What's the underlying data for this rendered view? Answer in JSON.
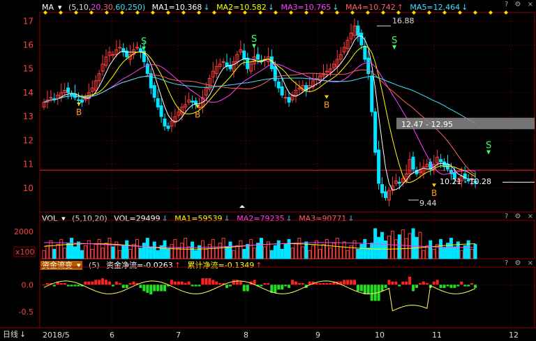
{
  "ma_header": {
    "indicator": "MA",
    "params_prefix": "(5,10,",
    "params_20": "20",
    "params_30": ",30,",
    "params_rest": "60,250)",
    "ma1": "MA1=10.368",
    "ma2": "MA2=10.582",
    "ma3": "MA3=10.765",
    "ma4": "MA4=10.742",
    "ma5": "MA5=12.464"
  },
  "vol_header": {
    "indicator": "VOL",
    "params": "(5,10,20)",
    "vol": "VOL=29499",
    "ma1": "MA1=59539",
    "ma2": "MA2=79235",
    "ma3": "MA3=90771"
  },
  "fund_header": {
    "button": "资金流变",
    "params": "(5)",
    "net": "资金净流=-0.0263",
    "cum": "累计净流=-0.1349"
  },
  "icons": {
    "question": "?",
    "settings": "⚙",
    "close": "×"
  },
  "bottom": {
    "period_label": "日线",
    "down_arrow": "↓"
  },
  "colors": {
    "up": "#ff3c3c",
    "down": "#00e5ff",
    "ma1": "#ffffff",
    "ma2": "#ffff00",
    "ma3": "#ff40ff",
    "ma4": "#ff6060",
    "ma5": "#40e0ff",
    "grid": "#8b0000",
    "axis_text": "#ff4040"
  },
  "chart_data": [
    {
      "type": "candlestick",
      "title": "",
      "y_ticks": [
        10,
        11,
        12,
        13,
        14,
        15,
        16,
        17
      ],
      "ylim": [
        9.0,
        17.3
      ],
      "x_tick_labels": [
        "2018/5",
        "6",
        "7",
        "8",
        "9",
        "10",
        "11",
        "12"
      ],
      "annotations": {
        "high_label": "16.88",
        "low_label": "9.44",
        "zone_upper": "12.47 - 12.95",
        "zone_lower": "10.21 - 10.28",
        "buy_marker": "B",
        "sell_marker": "S"
      },
      "close_series": [
        13.6,
        13.7,
        13.8,
        13.7,
        13.9,
        14.0,
        14.1,
        14.0,
        13.9,
        13.8,
        13.7,
        13.6,
        13.8,
        14.0,
        14.2,
        14.5,
        14.8,
        15.2,
        15.5,
        15.7,
        15.6,
        15.8,
        15.9,
        15.7,
        15.5,
        15.6,
        15.8,
        15.9,
        15.7,
        15.3,
        14.8,
        14.2,
        13.8,
        13.4,
        13.0,
        12.6,
        12.5,
        12.8,
        13.0,
        13.2,
        13.4,
        13.5,
        13.7,
        13.6,
        13.5,
        13.4,
        13.8,
        14.2,
        14.6,
        14.9,
        15.1,
        15.2,
        15.3,
        15.1,
        15.0,
        15.3,
        15.6,
        15.8,
        15.4,
        15.0,
        15.2,
        15.5,
        15.4,
        15.3,
        15.4,
        15.5,
        15.0,
        14.5,
        14.2,
        13.9,
        13.8,
        13.6,
        13.9,
        14.1,
        14.2,
        14.3,
        14.1,
        14.3,
        14.5,
        14.6,
        14.7,
        14.8,
        14.9,
        15.0,
        15.2,
        15.4,
        15.6,
        15.9,
        16.2,
        16.5,
        16.8,
        16.4,
        16.0,
        15.4,
        14.8,
        13.2,
        11.5,
        10.2,
        9.8,
        9.6,
        9.9,
        10.1,
        10.3,
        10.2,
        10.4,
        10.6,
        11.2,
        10.8,
        10.6,
        10.7,
        10.9,
        11.0,
        10.8,
        11.0,
        11.3,
        11.1,
        10.9,
        10.8,
        10.6,
        10.4,
        10.3,
        10.5,
        10.4,
        10.3,
        10.4,
        10.2
      ],
      "volume_ymax": 2500,
      "volume_ticks": [
        "2000",
        "1000"
      ],
      "volume_unit": "x100",
      "fund_ylim": [
        -0.8,
        0.25
      ],
      "fund_ticks": [
        "0.0",
        "-0.5"
      ]
    }
  ]
}
